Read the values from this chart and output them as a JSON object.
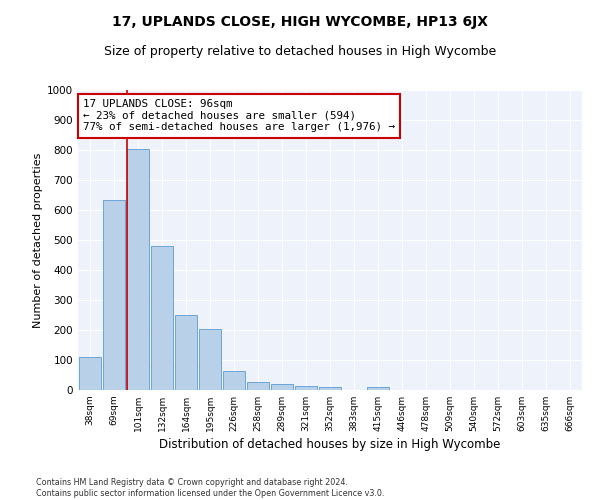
{
  "title": "17, UPLANDS CLOSE, HIGH WYCOMBE, HP13 6JX",
  "subtitle": "Size of property relative to detached houses in High Wycombe",
  "xlabel": "Distribution of detached houses by size in High Wycombe",
  "ylabel": "Number of detached properties",
  "categories": [
    "38sqm",
    "69sqm",
    "101sqm",
    "132sqm",
    "164sqm",
    "195sqm",
    "226sqm",
    "258sqm",
    "289sqm",
    "321sqm",
    "352sqm",
    "383sqm",
    "415sqm",
    "446sqm",
    "478sqm",
    "509sqm",
    "540sqm",
    "572sqm",
    "603sqm",
    "635sqm",
    "666sqm"
  ],
  "values": [
    110,
    635,
    805,
    480,
    250,
    203,
    62,
    27,
    20,
    13,
    10,
    0,
    10,
    0,
    0,
    0,
    0,
    0,
    0,
    0,
    0
  ],
  "bar_color": "#b8d0e8",
  "bar_edge_color": "#5b9bd5",
  "vline_index": 2,
  "annotation_line1": "17 UPLANDS CLOSE: 96sqm",
  "annotation_line2": "← 23% of detached houses are smaller (594)",
  "annotation_line3": "77% of semi-detached houses are larger (1,976) →",
  "annotation_box_facecolor": "#ffffff",
  "annotation_box_edgecolor": "#cc0000",
  "vline_color": "#cc0000",
  "ylim": [
    0,
    1000
  ],
  "yticks": [
    0,
    100,
    200,
    300,
    400,
    500,
    600,
    700,
    800,
    900,
    1000
  ],
  "bg_color": "#eef2fa",
  "grid_color": "#ffffff",
  "title_fontsize": 10,
  "subtitle_fontsize": 9,
  "footer": "Contains HM Land Registry data © Crown copyright and database right 2024.\nContains public sector information licensed under the Open Government Licence v3.0."
}
